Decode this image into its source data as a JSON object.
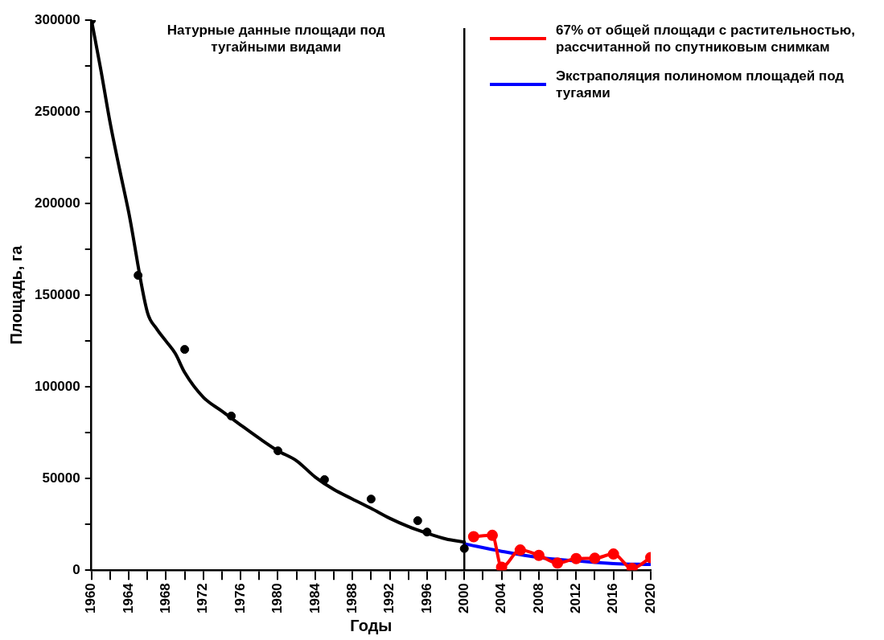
{
  "chart_data": {
    "type": "line",
    "xlabel": "Годы",
    "ylabel": "Площадь, га",
    "annotations": [
      "Натурные данные площади под тугайными видами"
    ],
    "xlim": [
      1960,
      2020
    ],
    "xticks": [
      1960,
      {
        "value": 1962,
        "label": null
      },
      1964,
      {
        "value": 1966,
        "label": null
      },
      1968,
      {
        "value": 1970,
        "label": null
      },
      1972,
      {
        "value": 1974,
        "label": null
      },
      1976,
      {
        "value": 1978,
        "label": null
      },
      1980,
      {
        "value": 1982,
        "label": null
      },
      1984,
      {
        "value": 1986,
        "label": null
      },
      1988,
      {
        "value": 1990,
        "label": null
      },
      1992,
      {
        "value": 1994,
        "label": null
      },
      1996,
      {
        "value": 1998,
        "label": null
      },
      2000,
      {
        "value": 2002,
        "label": null
      },
      2004,
      {
        "value": 2006,
        "label": null
      },
      2008,
      {
        "value": 2010,
        "label": null
      },
      2012,
      {
        "value": 2014,
        "label": null
      },
      2016,
      {
        "value": 2018,
        "label": null
      },
      2020
    ],
    "ylim": [
      0,
      300000
    ],
    "yticks": [
      0,
      {
        "value": 25000,
        "label": null
      },
      50000,
      {
        "value": 75000,
        "label": null
      },
      100000,
      {
        "value": 125000,
        "label": null
      },
      150000,
      {
        "value": 175000,
        "label": null
      },
      200000,
      {
        "value": 225000,
        "label": null
      },
      250000,
      {
        "value": 275000,
        "label": null
      },
      300000
    ],
    "grid": false,
    "legend": "top right",
    "ref_lines": [
      {
        "axis": "x",
        "value": 2000,
        "color": "#000000"
      }
    ],
    "series": [
      {
        "type": "line",
        "color": "#000000",
        "marker": "none",
        "x": [
          1960,
          1961,
          1962,
          1963,
          1964,
          1966,
          1967,
          1968,
          1969,
          1970,
          1972,
          1974,
          1976,
          1978,
          1980,
          1982,
          1984,
          1986,
          1988,
          1990,
          1992,
          1994,
          1996,
          1998,
          2000
        ],
        "values": [
          300000,
          273000,
          244000,
          219000,
          195000,
          140600,
          131600,
          124900,
          118100,
          107800,
          94300,
          86700,
          79200,
          71900,
          65100,
          59700,
          50800,
          44000,
          38800,
          33700,
          28300,
          23800,
          20200,
          17100,
          15300
        ]
      },
      {
        "type": "scatter",
        "color": "#000000",
        "marker": "circle",
        "x": [
          1960,
          1965,
          1970,
          1975,
          1980,
          1985,
          1990,
          1995,
          1996,
          2000
        ],
        "values": [
          300000,
          160800,
          120400,
          84100,
          65100,
          49400,
          38800,
          27000,
          20800,
          11800
        ]
      },
      {
        "type": "line",
        "name": "67% от общей площади с растительностью, рассчитанной по спутниковым снимкам",
        "color": "#ff0000",
        "marker": "circle",
        "x": [
          2001,
          2003,
          2004,
          2006,
          2008,
          2010,
          2012,
          2014,
          2016,
          2018,
          2020
        ],
        "values": [
          18300,
          19000,
          1600,
          11000,
          8100,
          3900,
          6300,
          6500,
          8800,
          1000,
          6900
        ]
      },
      {
        "type": "line",
        "name": "Экстраполяция полиномом площадей под тугаями",
        "color": "#0000ff",
        "marker": "none",
        "x": [
          2000,
          2004,
          2008,
          2012,
          2016,
          2020
        ],
        "values": [
          14400,
          10300,
          6900,
          5100,
          3600,
          3100
        ]
      }
    ]
  }
}
